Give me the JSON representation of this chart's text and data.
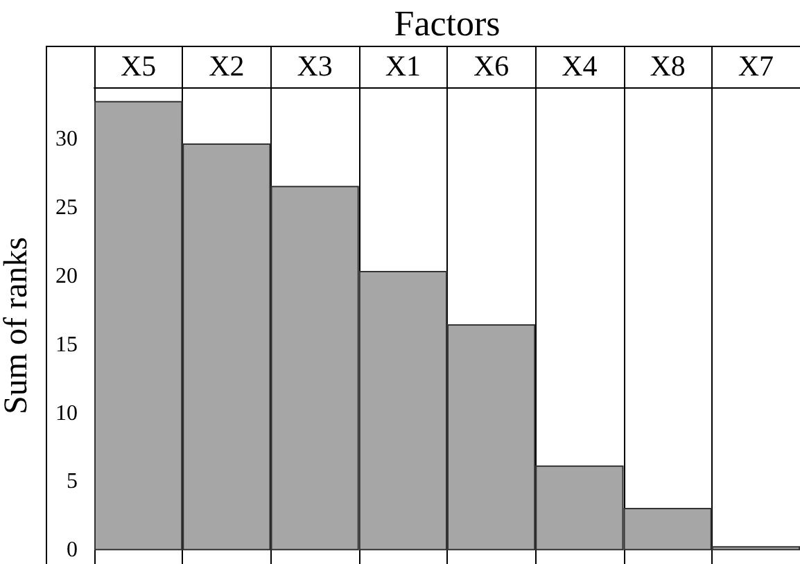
{
  "chart_data": {
    "type": "bar",
    "xlabel": "Factors",
    "ylabel": "Sum of ranks",
    "categories": [
      "X5",
      "X2",
      "X3",
      "X1",
      "X6",
      "X4",
      "X8",
      "X7"
    ],
    "values": [
      32.8,
      29.7,
      26.6,
      20.4,
      16.5,
      6.2,
      3.1,
      0.3
    ],
    "color": "#a6a6a6",
    "ylim": [
      -1,
      33.8
    ],
    "yticks": [
      0,
      5,
      10,
      15,
      20,
      25,
      30
    ],
    "grid": "x"
  }
}
